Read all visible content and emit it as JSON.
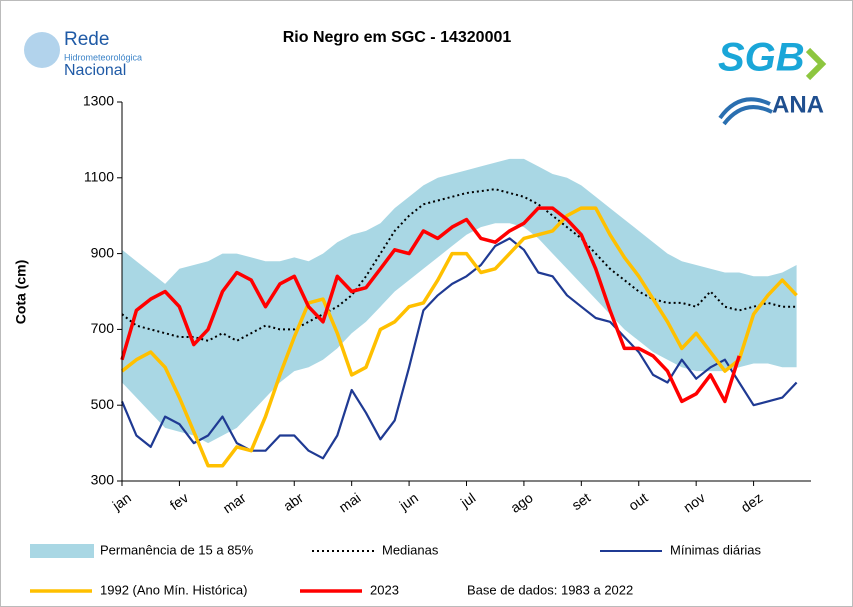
{
  "logos": {
    "rede": [
      "Rede",
      "Hidrometeorológica",
      "Nacional"
    ],
    "sgb": "SGB",
    "ana": "ANA"
  },
  "chart_data": {
    "type": "line",
    "title": "Rio Negro em SGC - 14320001",
    "y_label": "Cota (cm)",
    "annotation": "Base de dados: 1983 a 2022",
    "ylim": [
      300,
      1300
    ],
    "yticks": [
      300,
      500,
      700,
      900,
      1100,
      1300
    ],
    "grid": false,
    "categories": [
      "jan",
      null,
      null,
      null,
      "fev",
      null,
      null,
      null,
      "mar",
      null,
      null,
      null,
      "abr",
      null,
      null,
      null,
      "mai",
      null,
      null,
      null,
      "jun",
      null,
      null,
      null,
      "jul",
      null,
      null,
      null,
      "ago",
      null,
      null,
      null,
      "set",
      null,
      null,
      null,
      "out",
      null,
      null,
      null,
      "nov",
      null,
      null,
      null,
      "dez",
      null,
      null,
      null
    ],
    "series": [
      {
        "name": "Permanência de 15 a 85%",
        "color": "#a9d7e4",
        "type": "band",
        "low": [
          560,
          520,
          480,
          440,
          430,
          420,
          400,
          420,
          440,
          480,
          520,
          560,
          590,
          600,
          620,
          650,
          690,
          720,
          760,
          800,
          830,
          860,
          890,
          920,
          950,
          970,
          980,
          980,
          970,
          940,
          900,
          860,
          820,
          780,
          740,
          700,
          670,
          640,
          620,
          600,
          590,
          590,
          590,
          600,
          610,
          610,
          600,
          600
        ],
        "high": [
          910,
          880,
          850,
          820,
          860,
          870,
          880,
          900,
          900,
          890,
          880,
          880,
          890,
          880,
          900,
          930,
          950,
          960,
          980,
          1020,
          1050,
          1080,
          1100,
          1110,
          1120,
          1130,
          1140,
          1150,
          1150,
          1130,
          1110,
          1100,
          1080,
          1050,
          1020,
          990,
          960,
          930,
          900,
          880,
          870,
          860,
          850,
          850,
          840,
          840,
          850,
          870
        ]
      },
      {
        "name": "Medianas",
        "color": "#000000",
        "style": "dotted",
        "values": [
          740,
          710,
          700,
          690,
          680,
          680,
          670,
          690,
          670,
          690,
          710,
          700,
          700,
          720,
          740,
          760,
          790,
          840,
          900,
          960,
          1000,
          1030,
          1040,
          1050,
          1060,
          1065,
          1070,
          1060,
          1050,
          1030,
          1000,
          970,
          940,
          900,
          860,
          830,
          800,
          780,
          770,
          770,
          760,
          800,
          760,
          750,
          760,
          770,
          760,
          760
        ]
      },
      {
        "name": "Mínimas diárias",
        "color": "#1f3a93",
        "style": "solid",
        "values": [
          510,
          420,
          390,
          470,
          450,
          400,
          420,
          470,
          400,
          380,
          380,
          420,
          420,
          380,
          360,
          420,
          540,
          480,
          410,
          460,
          600,
          750,
          790,
          820,
          840,
          870,
          920,
          940,
          910,
          850,
          840,
          790,
          760,
          730,
          720,
          680,
          640,
          580,
          560,
          620,
          570,
          600,
          620,
          560,
          500,
          510,
          520,
          560
        ]
      },
      {
        "name": "1992 (Ano Mín. Histórica)",
        "color": "#ffc000",
        "style": "solid",
        "values": [
          590,
          620,
          640,
          600,
          520,
          430,
          340,
          340,
          390,
          380,
          470,
          580,
          680,
          770,
          780,
          690,
          580,
          600,
          700,
          720,
          760,
          770,
          830,
          900,
          900,
          850,
          860,
          900,
          940,
          950,
          960,
          1000,
          1020,
          1020,
          950,
          890,
          840,
          780,
          720,
          650,
          690,
          640,
          590,
          620,
          740,
          790,
          830,
          790
        ]
      },
      {
        "name": "2023",
        "color": "#ff0000",
        "style": "solid",
        "values": [
          620,
          750,
          780,
          800,
          760,
          660,
          700,
          800,
          850,
          830,
          760,
          820,
          840,
          760,
          720,
          840,
          800,
          810,
          860,
          910,
          900,
          960,
          940,
          970,
          990,
          940,
          930,
          960,
          980,
          1020,
          1020,
          990,
          950,
          860,
          750,
          650,
          650,
          630,
          590,
          510,
          530,
          580,
          510,
          630,
          null,
          null,
          null,
          null
        ]
      }
    ]
  }
}
